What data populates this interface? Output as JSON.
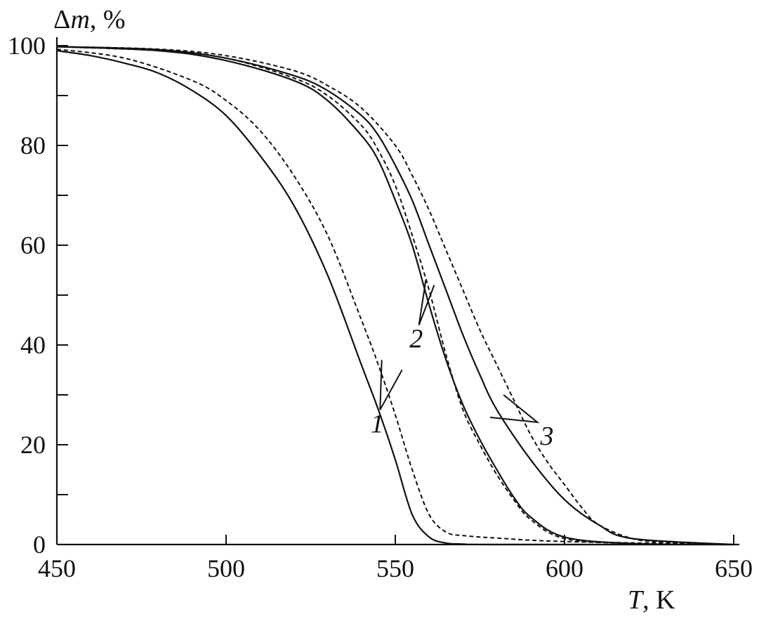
{
  "chart_data": {
    "type": "line",
    "ylabel_symbol": "Δ",
    "ylabel_var": "m",
    "ylabel_unit": ", %",
    "xlabel_var": "T",
    "xlabel_unit": ", K",
    "xlim": [
      450,
      650
    ],
    "ylim": [
      0,
      100
    ],
    "x_ticks": [
      450,
      500,
      550,
      600,
      650
    ],
    "y_ticks": [
      0,
      20,
      40,
      60,
      80,
      100
    ],
    "y_minor_ticks": [
      10,
      30,
      50,
      70,
      90
    ],
    "grid": false,
    "series": [
      {
        "name": "1",
        "style": "solid",
        "x": [
          450,
          460,
          470,
          480,
          490,
          500,
          510,
          520,
          530,
          540,
          545,
          550,
          555,
          560,
          565,
          570,
          580,
          650
        ],
        "y": [
          99,
          98,
          96.5,
          94.5,
          91,
          86,
          78,
          68,
          54,
          36,
          27,
          17,
          6,
          1.5,
          0.3,
          0.1,
          0,
          0
        ]
      },
      {
        "name": "1",
        "style": "dashed",
        "x": [
          450,
          470,
          490,
          500,
          510,
          520,
          530,
          540,
          545,
          550,
          555,
          560,
          565,
          570,
          580,
          600,
          650
        ],
        "y": [
          99.3,
          97.5,
          93,
          89,
          83,
          74,
          62,
          45,
          36,
          26,
          15,
          6,
          2.5,
          1.8,
          1.3,
          0.6,
          0
        ]
      },
      {
        "name": "2",
        "style": "solid",
        "x": [
          450,
          480,
          500,
          520,
          530,
          540,
          545,
          550,
          555,
          560,
          565,
          570,
          575,
          580,
          585,
          590,
          600,
          620,
          650
        ],
        "y": [
          99.8,
          99,
          97,
          93,
          89,
          82,
          77,
          69,
          60,
          48,
          37,
          28,
          21,
          15,
          9.5,
          5.5,
          1.5,
          0.2,
          0
        ]
      },
      {
        "name": "2",
        "style": "dashed",
        "x": [
          450,
          480,
          500,
          520,
          530,
          540,
          545,
          550,
          555,
          560,
          565,
          570,
          575,
          580,
          585,
          590,
          600,
          620,
          650
        ],
        "y": [
          99.8,
          99,
          97.5,
          93.5,
          90,
          84,
          79,
          72,
          62,
          51,
          38,
          27,
          20,
          14,
          9,
          5,
          1.2,
          0.2,
          0
        ]
      },
      {
        "name": "3",
        "style": "solid",
        "x": [
          450,
          480,
          500,
          520,
          530,
          540,
          545,
          550,
          555,
          560,
          565,
          570,
          575,
          580,
          590,
          600,
          610,
          620,
          650
        ],
        "y": [
          99.8,
          99.2,
          97.5,
          94,
          91,
          86,
          82,
          76,
          69,
          60,
          51,
          42,
          34,
          27,
          17,
          9,
          4,
          1.2,
          0
        ]
      },
      {
        "name": "3",
        "style": "dashed",
        "x": [
          450,
          480,
          500,
          520,
          530,
          540,
          550,
          555,
          560,
          565,
          570,
          575,
          580,
          585,
          590,
          595,
          600,
          605,
          610,
          620,
          630,
          650
        ],
        "y": [
          99.8,
          99.3,
          98,
          95,
          92,
          87.5,
          80,
          74,
          67,
          59,
          51,
          43,
          36,
          29,
          22,
          16.5,
          12,
          7.5,
          4,
          1.2,
          0.4,
          0
        ]
      }
    ],
    "curve_labels": [
      {
        "text": "1",
        "x": 545.5,
        "y": 27,
        "pointer_ends": [
          [
            546,
            37
          ],
          [
            552,
            35
          ]
        ]
      },
      {
        "text": "2",
        "x": 557,
        "y": 44,
        "pointer_ends": [
          [
            559,
            53
          ],
          [
            561.5,
            52
          ]
        ]
      },
      {
        "text": "3",
        "x": 592,
        "y": 24.5,
        "pointer_ends": [
          [
            582,
            30
          ],
          [
            578,
            25.5
          ]
        ]
      }
    ]
  }
}
